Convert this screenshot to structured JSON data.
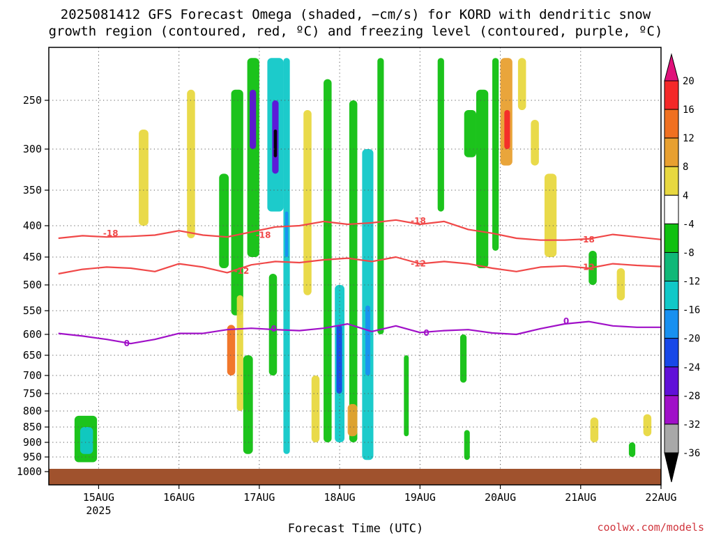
{
  "chart_data": {
    "type": "heatmap",
    "title_lines": [
      "2025081412 GFS Forecast Omega (shaded, −cm/s) for KORD with dendritic snow",
      "growth region (contoured, red, ºC) and freezing level (contoured, purple, ºC)"
    ],
    "xlabel": "Forecast Time (UTC)",
    "ylabel": "",
    "credit": "coolwx.com/models",
    "x_ticks": [
      {
        "value": 0.5,
        "label": "15AUG",
        "sub": "2025"
      },
      {
        "value": 1.5,
        "label": "16AUG",
        "sub": ""
      },
      {
        "value": 2.5,
        "label": "17AUG",
        "sub": ""
      },
      {
        "value": 3.5,
        "label": "18AUG",
        "sub": ""
      },
      {
        "value": 4.5,
        "label": "19AUG",
        "sub": ""
      },
      {
        "value": 5.5,
        "label": "20AUG",
        "sub": ""
      },
      {
        "value": 6.5,
        "label": "21AUG",
        "sub": ""
      },
      {
        "value": 7.5,
        "label": "22AUG",
        "sub": ""
      }
    ],
    "y_ticks": [
      250,
      300,
      350,
      400,
      450,
      500,
      550,
      600,
      650,
      700,
      750,
      800,
      850,
      900,
      950,
      1000
    ],
    "colorbar": {
      "labels": [
        "20",
        "16",
        "12",
        "8",
        "4",
        "-4",
        "-8",
        "-12",
        "-16",
        "-20",
        "-24",
        "-28",
        "-32",
        "-36"
      ],
      "colors": [
        "#e0107a",
        "#f42828",
        "#f07020",
        "#e8a030",
        "#e8d840",
        "#ffffff",
        "#10c010",
        "#10b878",
        "#10c8c8",
        "#1890f0",
        "#1848e8",
        "#6010d8",
        "#a010c8",
        "#a8a8a8",
        "#000000"
      ]
    },
    "series": [
      {
        "name": "-18",
        "color": "#f04848",
        "x": [
          0,
          0.3,
          0.6,
          0.9,
          1.2,
          1.5,
          1.8,
          2.1,
          2.4,
          2.7,
          3.0,
          3.3,
          3.6,
          3.9,
          4.2,
          4.5,
          4.8,
          5.1,
          5.4,
          5.7,
          6.0,
          6.3,
          6.6,
          6.9,
          7.2,
          7.5
        ],
        "y": [
          420,
          416,
          418,
          417,
          415,
          408,
          415,
          418,
          410,
          402,
          400,
          394,
          398,
          396,
          392,
          398,
          394,
          406,
          412,
          420,
          423,
          423,
          421,
          414,
          418,
          422
        ]
      },
      {
        "name": "-12",
        "color": "#f04848",
        "x": [
          0,
          0.3,
          0.6,
          0.9,
          1.2,
          1.5,
          1.8,
          2.1,
          2.4,
          2.7,
          3.0,
          3.3,
          3.6,
          3.9,
          4.2,
          4.5,
          4.8,
          5.1,
          5.4,
          5.7,
          6.0,
          6.3,
          6.6,
          6.9,
          7.2,
          7.5
        ],
        "y": [
          480,
          472,
          468,
          470,
          476,
          462,
          468,
          478,
          464,
          458,
          460,
          455,
          452,
          458,
          450,
          462,
          458,
          462,
          470,
          476,
          468,
          466,
          470,
          462,
          465,
          467
        ]
      },
      {
        "name": "0",
        "color": "#a010c8",
        "x": [
          0,
          0.3,
          0.6,
          0.9,
          1.2,
          1.5,
          1.8,
          2.1,
          2.4,
          2.7,
          3.0,
          3.3,
          3.6,
          3.9,
          4.2,
          4.5,
          4.8,
          5.1,
          5.4,
          5.7,
          6.0,
          6.3,
          6.6,
          6.9,
          7.2,
          7.5
        ],
        "y": [
          598,
          604,
          612,
          622,
          612,
          598,
          598,
          590,
          587,
          590,
          592,
          587,
          578,
          594,
          582,
          596,
          592,
          590,
          597,
          600,
          588,
          578,
          573,
          582,
          585,
          585
        ]
      }
    ],
    "contour_labels": [
      {
        "text": "-18",
        "x": 0.65,
        "y": 412,
        "color": "#f04848"
      },
      {
        "text": "-18",
        "x": 2.55,
        "y": 415,
        "color": "#f04848"
      },
      {
        "text": "-18",
        "x": 4.48,
        "y": 393,
        "color": "#f04848"
      },
      {
        "text": "-18",
        "x": 6.58,
        "y": 422,
        "color": "#f04848"
      },
      {
        "text": "-12",
        "x": 2.28,
        "y": 475,
        "color": "#f04848"
      },
      {
        "text": "-12",
        "x": 4.48,
        "y": 462,
        "color": "#f04848"
      },
      {
        "text": "-12",
        "x": 6.58,
        "y": 468,
        "color": "#f04848"
      },
      {
        "text": "0",
        "x": 0.85,
        "y": 622,
        "color": "#a010c8"
      },
      {
        "text": "0",
        "x": 2.68,
        "y": 588,
        "color": "#a010c8"
      },
      {
        "text": "0",
        "x": 4.58,
        "y": 597,
        "color": "#a010c8"
      },
      {
        "text": "0",
        "x": 6.32,
        "y": 572,
        "color": "#a010c8"
      }
    ],
    "shaded_cells": [
      {
        "x0": 0.2,
        "x1": 0.48,
        "p0": 815,
        "p1": 968,
        "color": "#10c010"
      },
      {
        "x0": 0.27,
        "x1": 0.43,
        "p0": 850,
        "p1": 940,
        "color": "#10c8c8"
      },
      {
        "x0": 2.0,
        "x1": 2.12,
        "p0": 330,
        "p1": 470,
        "color": "#10c010"
      },
      {
        "x0": 2.15,
        "x1": 2.3,
        "p0": 240,
        "p1": 560,
        "color": "#10c010"
      },
      {
        "x0": 2.22,
        "x1": 2.3,
        "p0": 520,
        "p1": 800,
        "color": "#e8d840"
      },
      {
        "x0": 2.3,
        "x1": 2.42,
        "p0": 650,
        "p1": 940,
        "color": "#10c010"
      },
      {
        "x0": 2.35,
        "x1": 2.5,
        "p0": 210,
        "p1": 450,
        "color": "#10c010"
      },
      {
        "x0": 2.38,
        "x1": 2.46,
        "p0": 240,
        "p1": 300,
        "color": "#6010d8"
      },
      {
        "x0": 2.6,
        "x1": 2.8,
        "p0": 210,
        "p1": 380,
        "color": "#10c8c8"
      },
      {
        "x0": 2.66,
        "x1": 2.74,
        "p0": 250,
        "p1": 330,
        "color": "#6010d8"
      },
      {
        "x0": 2.68,
        "x1": 2.72,
        "p0": 280,
        "p1": 310,
        "color": "#000000"
      },
      {
        "x0": 2.62,
        "x1": 2.72,
        "p0": 480,
        "p1": 700,
        "color": "#10c010"
      },
      {
        "x0": 2.8,
        "x1": 2.88,
        "p0": 210,
        "p1": 940,
        "color": "#10c8c8"
      },
      {
        "x0": 2.82,
        "x1": 2.86,
        "p0": 380,
        "p1": 450,
        "color": "#1890f0"
      },
      {
        "x0": 3.05,
        "x1": 3.15,
        "p0": 260,
        "p1": 520,
        "color": "#e8d840"
      },
      {
        "x0": 3.3,
        "x1": 3.4,
        "p0": 230,
        "p1": 900,
        "color": "#10c010"
      },
      {
        "x0": 3.44,
        "x1": 3.56,
        "p0": 500,
        "p1": 900,
        "color": "#10c8c8"
      },
      {
        "x0": 3.46,
        "x1": 3.53,
        "p0": 580,
        "p1": 750,
        "color": "#1848e8"
      },
      {
        "x0": 3.62,
        "x1": 3.72,
        "p0": 250,
        "p1": 900,
        "color": "#10c010"
      },
      {
        "x0": 3.78,
        "x1": 3.92,
        "p0": 300,
        "p1": 960,
        "color": "#10c8c8"
      },
      {
        "x0": 3.82,
        "x1": 3.88,
        "p0": 540,
        "p1": 700,
        "color": "#1890f0"
      },
      {
        "x0": 3.97,
        "x1": 4.05,
        "p0": 210,
        "p1": 600,
        "color": "#10c010"
      },
      {
        "x0": 3.6,
        "x1": 3.72,
        "p0": 780,
        "p1": 880,
        "color": "#e8a030"
      },
      {
        "x0": 4.3,
        "x1": 4.36,
        "p0": 650,
        "p1": 880,
        "color": "#10c010"
      },
      {
        "x0": 4.72,
        "x1": 4.8,
        "p0": 210,
        "p1": 380,
        "color": "#10c010"
      },
      {
        "x0": 5.05,
        "x1": 5.2,
        "p0": 260,
        "p1": 310,
        "color": "#10c010"
      },
      {
        "x0": 5.2,
        "x1": 5.35,
        "p0": 240,
        "p1": 470,
        "color": "#10c010"
      },
      {
        "x0": 5.4,
        "x1": 5.48,
        "p0": 210,
        "p1": 440,
        "color": "#10c010"
      },
      {
        "x0": 5.5,
        "x1": 5.65,
        "p0": 210,
        "p1": 320,
        "color": "#e8a030"
      },
      {
        "x0": 5.55,
        "x1": 5.62,
        "p0": 260,
        "p1": 300,
        "color": "#f42828"
      },
      {
        "x0": 5.72,
        "x1": 5.82,
        "p0": 210,
        "p1": 260,
        "color": "#e8d840"
      },
      {
        "x0": 6.05,
        "x1": 6.2,
        "p0": 330,
        "p1": 450,
        "color": "#e8d840"
      },
      {
        "x0": 6.6,
        "x1": 6.7,
        "p0": 440,
        "p1": 500,
        "color": "#10c010"
      },
      {
        "x0": 1.0,
        "x1": 1.12,
        "p0": 280,
        "p1": 400,
        "color": "#e8d840"
      },
      {
        "x0": 1.6,
        "x1": 1.7,
        "p0": 240,
        "p1": 420,
        "color": "#e8d840"
      },
      {
        "x0": 2.1,
        "x1": 2.2,
        "p0": 580,
        "p1": 700,
        "color": "#f07020"
      },
      {
        "x0": 3.15,
        "x1": 3.25,
        "p0": 700,
        "p1": 900,
        "color": "#e8d840"
      },
      {
        "x0": 5.0,
        "x1": 5.08,
        "p0": 600,
        "p1": 720,
        "color": "#10c010"
      },
      {
        "x0": 5.05,
        "x1": 5.12,
        "p0": 860,
        "p1": 960,
        "color": "#10c010"
      },
      {
        "x0": 7.1,
        "x1": 7.18,
        "p0": 900,
        "p1": 950,
        "color": "#10c010"
      },
      {
        "x0": 6.62,
        "x1": 6.72,
        "p0": 820,
        "p1": 900,
        "color": "#e8d840"
      },
      {
        "x0": 7.28,
        "x1": 7.38,
        "p0": 810,
        "p1": 880,
        "color": "#e8d840"
      },
      {
        "x0": 5.88,
        "x1": 5.98,
        "p0": 270,
        "p1": 320,
        "color": "#e8d840"
      },
      {
        "x0": 6.95,
        "x1": 7.05,
        "p0": 470,
        "p1": 530,
        "color": "#e8d840"
      }
    ],
    "surface_color": "#a0522d"
  }
}
